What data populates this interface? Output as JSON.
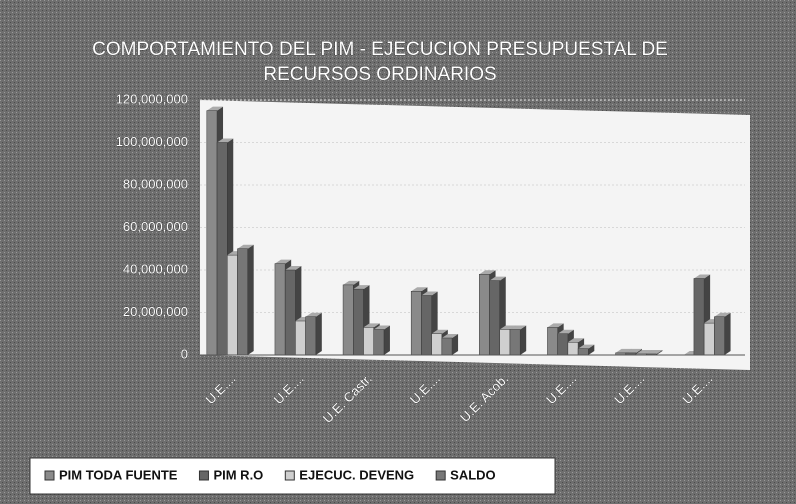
{
  "chart_data": {
    "type": "bar",
    "title": [
      "COMPORTAMIENTO DEL PIM - EJECUCION PRESUPUESTAL DE",
      "RECURSOS ORDINARIOS"
    ],
    "categories": [
      "U.E....",
      "U.E....",
      "U.E. Castr.",
      "U.E....",
      "U.E. Acob.",
      "U.E....",
      "U.E....",
      "U.E...."
    ],
    "series": [
      {
        "name": "PIM TODA FUENTE",
        "color": "#8a8a8a",
        "values": [
          115000000,
          43000000,
          33000000,
          30000000,
          38000000,
          13000000,
          1000000,
          0
        ]
      },
      {
        "name": "PIM R.O",
        "color": "#666666",
        "values": [
          100000000,
          40000000,
          31000000,
          28000000,
          35000000,
          10000000,
          1000000,
          36000000
        ]
      },
      {
        "name": "EJECUC. DEVENG",
        "color": "#cfcfcf",
        "values": [
          47000000,
          16000000,
          13000000,
          10000000,
          12000000,
          6000000,
          500000,
          15000000
        ]
      },
      {
        "name": "SALDO",
        "color": "#777777",
        "values": [
          50000000,
          18000000,
          12000000,
          8000000,
          12000000,
          3000000,
          500000,
          18000000
        ]
      }
    ],
    "ylim": [
      0,
      120000000
    ],
    "yticks": [
      0,
      {
        "value": 20000000,
        "label": "20,000,000"
      },
      {
        "value": 40000000,
        "label": "40,000,000"
      },
      {
        "value": 60000000,
        "label": "60,000,000"
      },
      {
        "value": 80000000,
        "label": "80,000,000"
      },
      {
        "value": 100000000,
        "label": "100,000,000"
      },
      {
        "value": 120000000,
        "label": "120,000,000"
      }
    ],
    "grid": true,
    "legend": "bottom"
  }
}
